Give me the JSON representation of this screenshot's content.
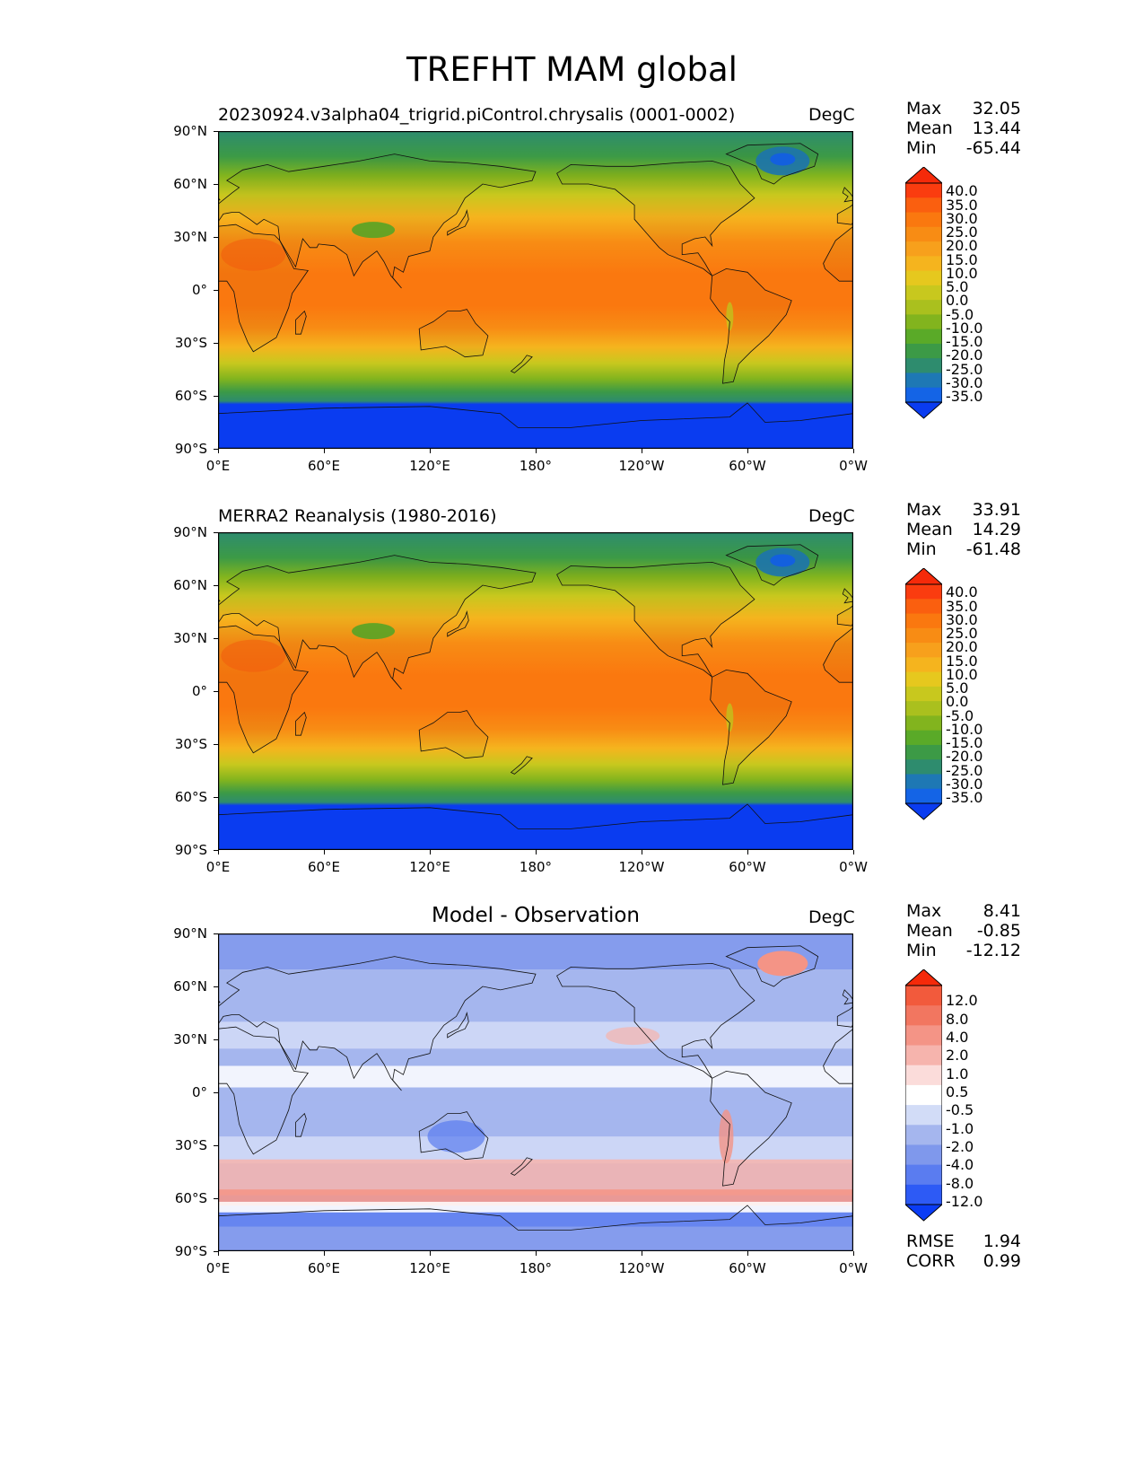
{
  "figure": {
    "title": "TREFHT MAM global"
  },
  "common": {
    "units": "DegC",
    "lat_ticks": [
      "90°N",
      "60°N",
      "30°N",
      "0°",
      "30°S",
      "60°S",
      "90°S"
    ],
    "lon_ticks": [
      "0°E",
      "60°E",
      "120°E",
      "180°",
      "120°W",
      "60°W",
      "0°W"
    ]
  },
  "panels": [
    {
      "title": "20230924.v3alpha04_trigrid.piControl.chrysalis (0001-0002)",
      "stats": {
        "max_label": "Max",
        "max": "32.05",
        "mean_label": "Mean",
        "mean": "13.44",
        "min_label": "Min",
        "min": "-65.44"
      },
      "colorbar_labels": [
        "40.0",
        "35.0",
        "30.0",
        "25.0",
        "20.0",
        "15.0",
        "10.0",
        "5.0",
        "0.0",
        "-5.0",
        "-10.0",
        "-15.0",
        "-20.0",
        "-25.0",
        "-30.0",
        "-35.0"
      ],
      "colormap": [
        "#0a3cf0",
        "#1464e6",
        "#1e78b4",
        "#2e8c6e",
        "#3c9a46",
        "#5aaa28",
        "#82b41e",
        "#aac01e",
        "#c8c81e",
        "#e6c81e",
        "#f5b41e",
        "#f7a01c",
        "#f88c14",
        "#fa780f",
        "#fa5f0f",
        "#fa3c0f",
        "#f52a0a"
      ]
    },
    {
      "title": "MERRA2 Reanalysis (1980-2016)",
      "stats": {
        "max_label": "Max",
        "max": "33.91",
        "mean_label": "Mean",
        "mean": "14.29",
        "min_label": "Min",
        "min": "-61.48"
      },
      "colorbar_labels": [
        "40.0",
        "35.0",
        "30.0",
        "25.0",
        "20.0",
        "15.0",
        "10.0",
        "5.0",
        "0.0",
        "-5.0",
        "-10.0",
        "-15.0",
        "-20.0",
        "-25.0",
        "-30.0",
        "-35.0"
      ],
      "colormap": [
        "#0a3cf0",
        "#1464e6",
        "#1e78b4",
        "#2e8c6e",
        "#3c9a46",
        "#5aaa28",
        "#82b41e",
        "#aac01e",
        "#c8c81e",
        "#e6c81e",
        "#f5b41e",
        "#f7a01c",
        "#f88c14",
        "#fa780f",
        "#fa5f0f",
        "#fa3c0f",
        "#f52a0a"
      ]
    },
    {
      "title": "Model - Observation",
      "stats": {
        "max_label": "Max",
        "max": "8.41",
        "mean_label": "Mean",
        "mean": "-0.85",
        "min_label": "Min",
        "min": "-12.12"
      },
      "colorbar_labels": [
        "12.0",
        "8.0",
        "4.0",
        "2.0",
        "1.0",
        "0.5",
        "-0.5",
        "-1.0",
        "-2.0",
        "-4.0",
        "-8.0",
        "-12.0"
      ],
      "colormap": [
        "#0a3cf5",
        "#2d5af5",
        "#5a7cf0",
        "#7f98ec",
        "#a5b6ee",
        "#d2dcf7",
        "#ffffff",
        "#fbdcda",
        "#f6b4ad",
        "#f49486",
        "#f27660",
        "#f25a3c",
        "#f52a0a"
      ],
      "extra_stats": {
        "rmse_label": "RMSE",
        "rmse": "1.94",
        "corr_label": "CORR",
        "corr": "0.99"
      }
    }
  ]
}
